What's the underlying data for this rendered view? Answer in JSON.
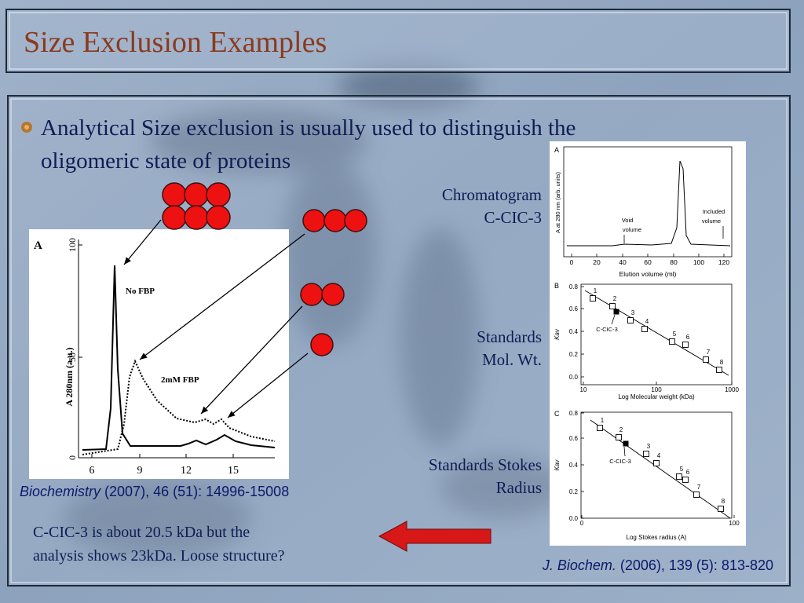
{
  "title": "Size Exclusion Examples",
  "bullet": {
    "lines": [
      "Analytical Size exclusion is usually used to distinguish the",
      "oligomeric state of proteins"
    ]
  },
  "left_figure": {
    "panel": "A",
    "y_label": "A 280nm (a.u.)",
    "yticks": [
      "100",
      "50",
      "0"
    ],
    "xticks": [
      "6",
      "9",
      "12",
      "15"
    ],
    "annotations": [
      "No FBP",
      "2mM FBP"
    ]
  },
  "left_citation": {
    "journal": "Biochemistry",
    "details": "(2007), 46 (51): 14996-15008"
  },
  "labels": [
    {
      "lines": [
        "Chromatogram",
        "C-CIC-3"
      ]
    },
    {
      "lines": [
        "Standards",
        "Mol. Wt."
      ]
    },
    {
      "lines": [
        "Standards Stokes",
        "Radius"
      ]
    }
  ],
  "right_figure": {
    "panel_a": {
      "panel": "A",
      "y_label": "A at 280 nm (arb. units)",
      "xticks": [
        "0",
        "20",
        "40",
        "60",
        "80",
        "100",
        "120"
      ],
      "x_label": "Elution volume (ml)",
      "annotations": [
        {
          "lines": [
            "Void",
            "volume"
          ]
        },
        {
          "lines": [
            "Included",
            "volume"
          ]
        }
      ]
    },
    "panel_b": {
      "panel": "B",
      "y_label": "Kav",
      "yticks": [
        "0.8",
        "0.6",
        "0.4",
        "0.2",
        "0.0"
      ],
      "xticks": [
        "10",
        "100",
        "1000"
      ],
      "x_label": "Log Molecular weight (kDa)",
      "point_labels": [
        "1",
        "2",
        "3",
        "4",
        "5",
        "6",
        "7",
        "8"
      ],
      "marker": "C-CIC-3"
    },
    "panel_c": {
      "panel": "C",
      "y_label": "Kav",
      "yticks": [
        "0.8",
        "0.6",
        "0.4",
        "0.2",
        "0.0"
      ],
      "xticks": [
        "0",
        "100"
      ],
      "x_label": "Log Stokes radius (A)",
      "point_labels": [
        "1",
        "2",
        "3",
        "4",
        "5",
        "6",
        "7",
        "8"
      ],
      "marker": "C-CIC-3"
    }
  },
  "conclusion": {
    "lines": [
      "C-CIC-3 is about 20.5 kDa but the",
      "analysis shows 23kDa. Loose structure?"
    ]
  },
  "right_citation": {
    "journal": "J. Biochem.",
    "details": "(2006), 139 (5): 813-820"
  }
}
